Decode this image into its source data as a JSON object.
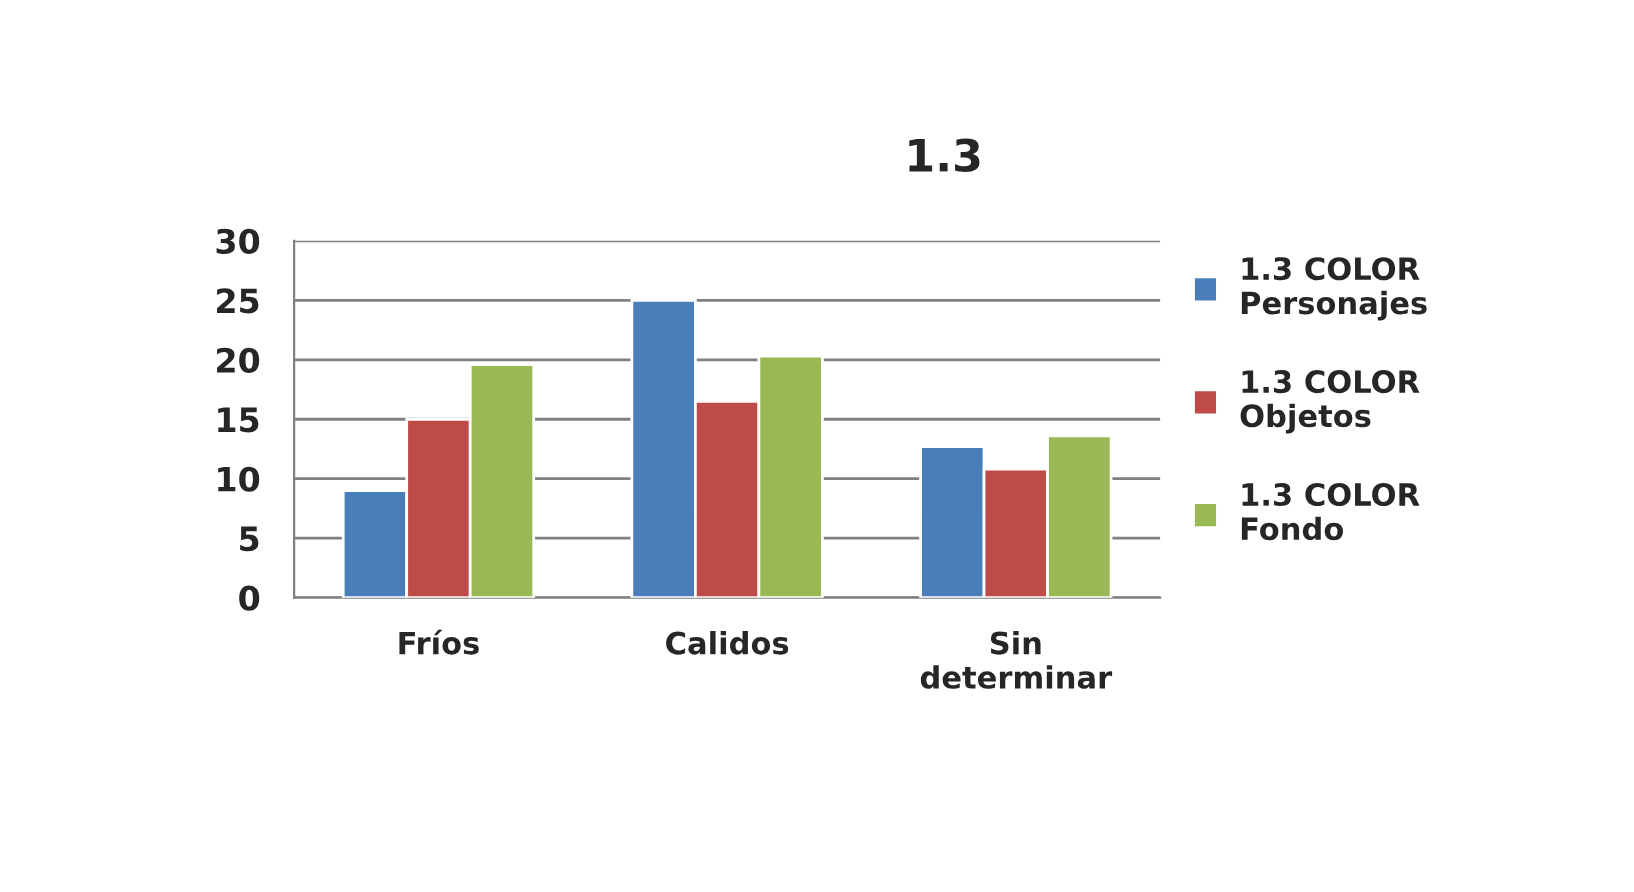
{
  "chart_data": {
    "type": "bar",
    "title": "1.3",
    "categories": [
      "Fríos",
      "Calidos",
      "Sin\ndeterminar"
    ],
    "series": [
      {
        "name": "1.3 COLOR\nPersonajes",
        "color": "#4a7ebb",
        "values": [
          9,
          25,
          12.7
        ]
      },
      {
        "name": "1.3 COLOR\nObjetos",
        "color": "#be4b48",
        "values": [
          15,
          16.5,
          10.8
        ]
      },
      {
        "name": "1.3 COLOR\nFondo",
        "color": "#98b954",
        "values": [
          19.6,
          20.3,
          13.6
        ]
      }
    ],
    "ylim": [
      0,
      30
    ],
    "yticks": [
      0,
      5,
      10,
      15,
      20,
      25,
      30
    ],
    "grid": "y",
    "legend": "right"
  }
}
